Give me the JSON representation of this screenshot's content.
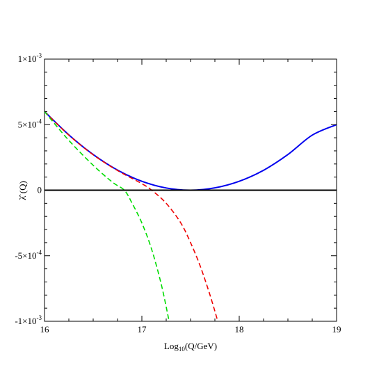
{
  "chart_data": {
    "type": "line",
    "xlabel": {
      "main": "Log",
      "sub": "10",
      "rest": "(Q/GeV)"
    },
    "ylabel": "λ̂ (Q)",
    "xlim": [
      16,
      19
    ],
    "ylim": [
      -0.001,
      0.001
    ],
    "grid": false,
    "legend": "none",
    "x_ticks": [
      {
        "value": 16,
        "label": "16"
      },
      {
        "value": 17,
        "label": "17"
      },
      {
        "value": 18,
        "label": "18"
      },
      {
        "value": 19,
        "label": "19"
      }
    ],
    "y_ticks": [
      {
        "value": 0.001,
        "mant": "1×10",
        "exp": "-3"
      },
      {
        "value": 0.0005,
        "mant": "5×10",
        "exp": "-4"
      },
      {
        "value": 0,
        "mant": "0",
        "exp": ""
      },
      {
        "value": -0.0005,
        "mant": "-5×10",
        "exp": "-4"
      },
      {
        "value": -0.001,
        "mant": "-1×10",
        "exp": "-3"
      }
    ],
    "series": [
      {
        "color": "#0000ee",
        "style": "solid",
        "x": [
          16.0,
          16.25,
          16.5,
          16.75,
          17.0,
          17.25,
          17.5,
          17.75,
          18.0,
          18.25,
          18.5,
          18.75,
          19.0
        ],
        "y": [
          0.0006,
          0.000422,
          0.000272,
          0.000153,
          6.8e-05,
          1.7e-05,
          0.0,
          1.8e-05,
          6.8e-05,
          0.000152,
          0.000272,
          0.00042,
          0.0005
        ]
      },
      {
        "color": "#ee0000",
        "style": "dashed",
        "x": [
          16.0,
          16.25,
          16.5,
          16.75,
          17.0,
          17.1,
          17.25,
          17.4,
          17.5,
          17.6,
          17.7,
          17.78
        ],
        "y": [
          0.0006,
          0.00042,
          0.00027,
          0.00015,
          5e-05,
          0.0,
          -0.0001,
          -0.00025,
          -0.0004,
          -0.00058,
          -0.0008,
          -0.001
        ]
      },
      {
        "color": "#00dd00",
        "style": "dashed",
        "x": [
          16.0,
          16.25,
          16.5,
          16.7,
          16.82,
          16.9,
          17.0,
          17.1,
          17.2,
          17.28
        ],
        "y": [
          0.0006,
          0.00038,
          0.00019,
          6e-05,
          0.0,
          -0.0001,
          -0.00025,
          -0.00045,
          -0.00072,
          -0.001
        ]
      },
      {
        "color": "#000000",
        "style": "solid",
        "x": [
          16,
          19
        ],
        "y": [
          0,
          0
        ]
      }
    ]
  }
}
